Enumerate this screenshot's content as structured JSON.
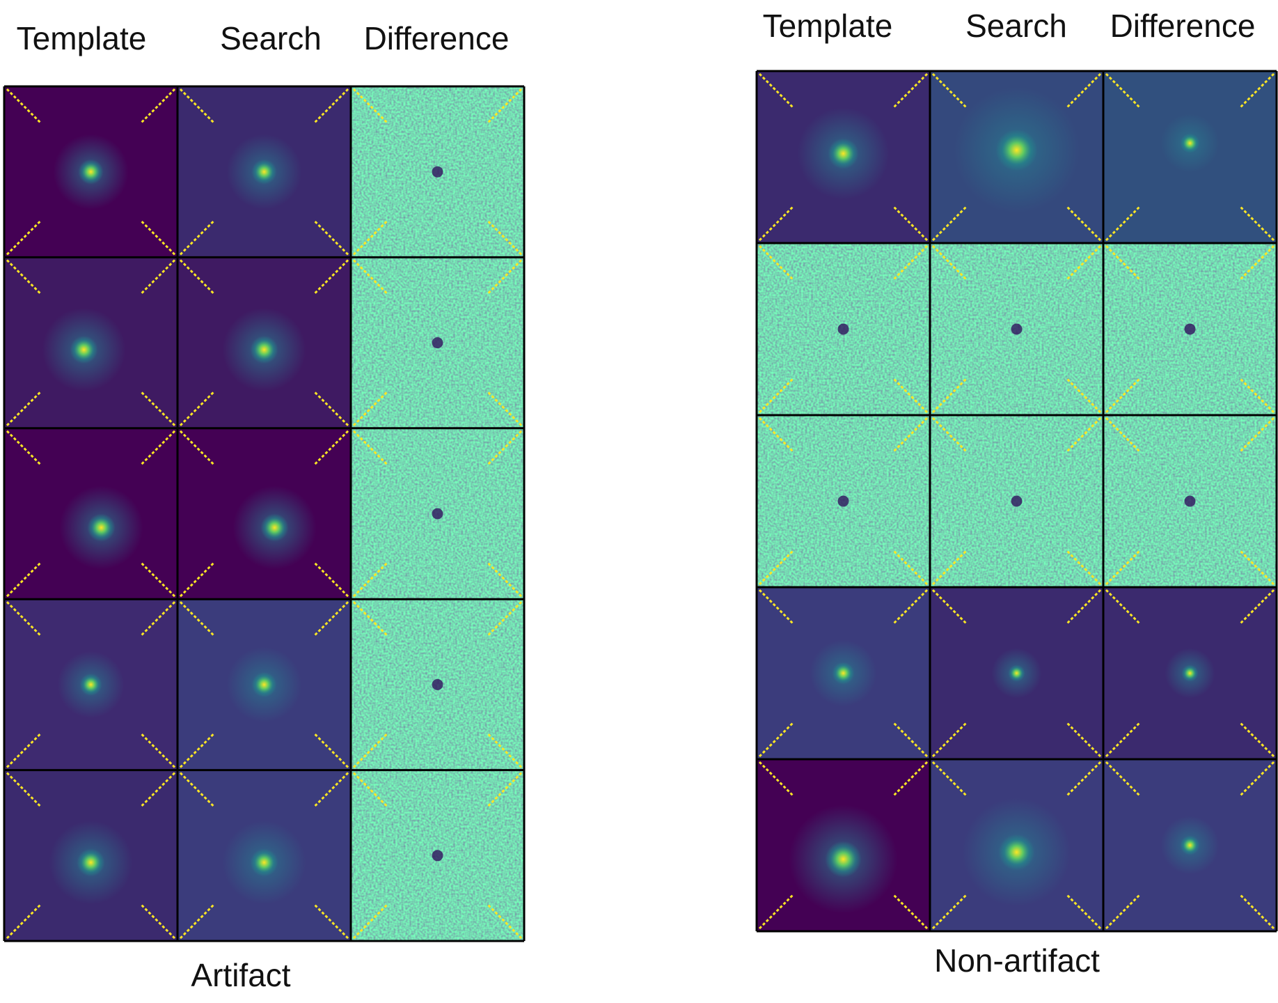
{
  "panels": [
    {
      "columns": [
        "Template",
        "Search",
        "Difference"
      ],
      "caption": "Artifact"
    },
    {
      "columns": [
        "Template",
        "Search",
        "Difference"
      ],
      "caption": "Non-artifact"
    }
  ]
}
